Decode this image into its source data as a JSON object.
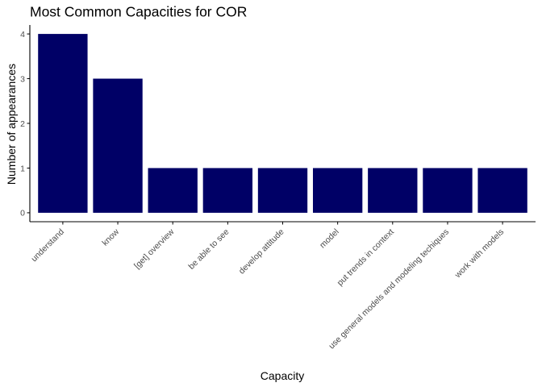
{
  "chart_data": {
    "type": "bar",
    "title": "Most Common Capacities for COR",
    "xlabel": "Capacity",
    "ylabel": "Number of appearances",
    "categories": [
      "understand",
      "know",
      "[get] overview",
      "be able to see",
      "develop attitude",
      "model",
      "put trends in context",
      "use general models and modeling techiques",
      "work with models"
    ],
    "values": [
      4,
      3,
      1,
      1,
      1,
      1,
      1,
      1,
      1
    ],
    "yticks": [
      0,
      1,
      2,
      3,
      4
    ],
    "ylim": [
      -0.2,
      4.2
    ],
    "grid": false,
    "bar_color": "#000066",
    "axis_color": "#000000",
    "tick_label_color": "#4d4d4d"
  }
}
